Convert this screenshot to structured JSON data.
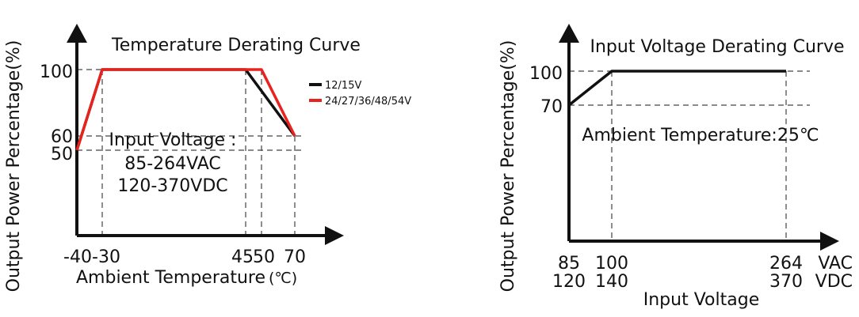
{
  "chart_data": [
    {
      "type": "line",
      "title": "Temperature Derating Curve",
      "xlabel": "Ambient Temperature",
      "xunit": "(℃)",
      "ylabel": "Output Power Percentage(%)",
      "x_ticks": [
        "-40",
        "-30",
        "45",
        "50",
        "70"
      ],
      "y_ticks": [
        "100",
        "60",
        "50"
      ],
      "annotation": [
        "Input Voltage :",
        "85-264VAC",
        "120-370VDC"
      ],
      "legend_position": "right",
      "series": [
        {
          "name": "12/15V",
          "color": "#111111",
          "points": [
            [
              -40,
              50
            ],
            [
              -30,
              100
            ],
            [
              45,
              100
            ],
            [
              70,
              60
            ]
          ]
        },
        {
          "name": "24/27/36/48/54V",
          "color": "#e8231d",
          "points": [
            [
              -40,
              50
            ],
            [
              -30,
              100
            ],
            [
              50,
              100
            ],
            [
              70,
              60
            ]
          ]
        }
      ]
    },
    {
      "type": "line",
      "title": "Input Voltage Derating Curve",
      "xlabel": "Input Voltage",
      "ylabel": "Output Power Percentage(%)",
      "x_ticks_ac": [
        "85",
        "100",
        "264"
      ],
      "x_ticks_dc": [
        "120",
        "140",
        "370"
      ],
      "x_unit_ac": "VAC",
      "x_unit_dc": "VDC",
      "y_ticks": [
        "100",
        "70"
      ],
      "annotation": "Ambient Temperature:25℃",
      "series": [
        {
          "color": "#111111",
          "points": [
            [
              85,
              70
            ],
            [
              100,
              100
            ],
            [
              264,
              100
            ]
          ]
        }
      ]
    }
  ]
}
